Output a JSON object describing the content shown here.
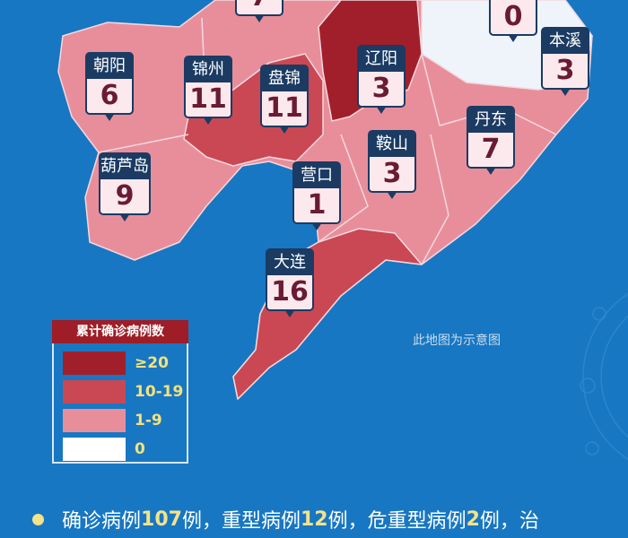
{
  "colors": {
    "ge20": "#a11f2a",
    "10_19": "#c94854",
    "1_9": "#e88e9b",
    "zero": "#eef4fa",
    "background": "#1877c2"
  },
  "regions": [
    {
      "name": "",
      "value": "7"
    },
    {
      "name": "",
      "value": "0"
    },
    {
      "name": "朝阳",
      "value": "6"
    },
    {
      "name": "锦州",
      "value": "11"
    },
    {
      "name": "盘锦",
      "value": "11"
    },
    {
      "name": "辽阳",
      "value": "3"
    },
    {
      "name": "本溪",
      "value": "3"
    },
    {
      "name": "丹东",
      "value": "7"
    },
    {
      "name": "鞍山",
      "value": "3"
    },
    {
      "name": "葫芦岛",
      "value": "9"
    },
    {
      "name": "营口",
      "value": "1"
    },
    {
      "name": "大连",
      "value": "16"
    }
  ],
  "legend": {
    "title": "累计确诊病例数",
    "items": [
      {
        "label": "≥20",
        "color": "#a11f2a"
      },
      {
        "label": "10-19",
        "color": "#c94854"
      },
      {
        "label": "1-9",
        "color": "#e88e9b"
      },
      {
        "label": "0",
        "color": "#ffffff"
      }
    ]
  },
  "note": "此地图为示意图",
  "summary": {
    "t1": "确诊病例",
    "n1": "107",
    "t2": "例，重型病例",
    "n2": "12",
    "t3": "例，危重型病例",
    "n3": "2",
    "t4": "例，治"
  }
}
